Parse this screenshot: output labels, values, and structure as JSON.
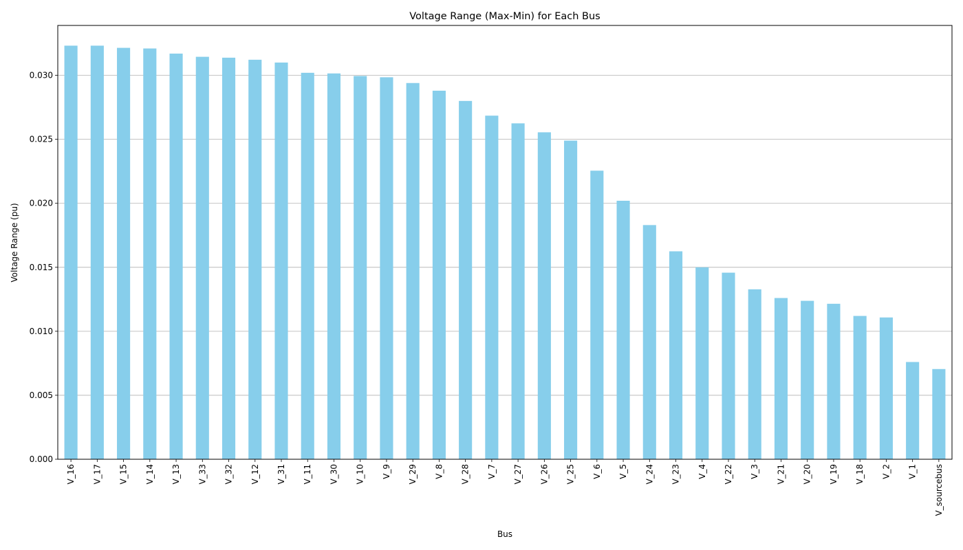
{
  "chart_data": {
    "type": "bar",
    "title": "Voltage Range (Max-Min) for Each Bus",
    "xlabel": "Bus",
    "ylabel": "Voltage Range (pu)",
    "categories": [
      "V_16",
      "V_17",
      "V_15",
      "V_14",
      "V_13",
      "V_33",
      "V_32",
      "V_12",
      "V_31",
      "V_11",
      "V_30",
      "V_10",
      "V_9",
      "V_29",
      "V_8",
      "V_28",
      "V_7",
      "V_27",
      "V_26",
      "V_25",
      "V_6",
      "V_5",
      "V_24",
      "V_23",
      "V_4",
      "V_22",
      "V_3",
      "V_21",
      "V_20",
      "V_19",
      "V_18",
      "V_2",
      "V_1",
      "V_sourcebus"
    ],
    "values": [
      0.03232,
      0.03232,
      0.03215,
      0.0321,
      0.0317,
      0.03145,
      0.03138,
      0.03122,
      0.031,
      0.0302,
      0.03015,
      0.02995,
      0.02985,
      0.0294,
      0.0288,
      0.028,
      0.02685,
      0.02625,
      0.02555,
      0.0249,
      0.02255,
      0.0202,
      0.0183,
      0.01625,
      0.015,
      0.01458,
      0.01328,
      0.0126,
      0.01238,
      0.01215,
      0.0112,
      0.01108,
      0.0076,
      0.00705
    ],
    "ylim": [
      0,
      0.0339
    ],
    "yticks": [
      "0.000",
      "0.005",
      "0.010",
      "0.015",
      "0.020",
      "0.025",
      "0.030"
    ],
    "grid": "y",
    "bar_color": "#87ceeb"
  }
}
